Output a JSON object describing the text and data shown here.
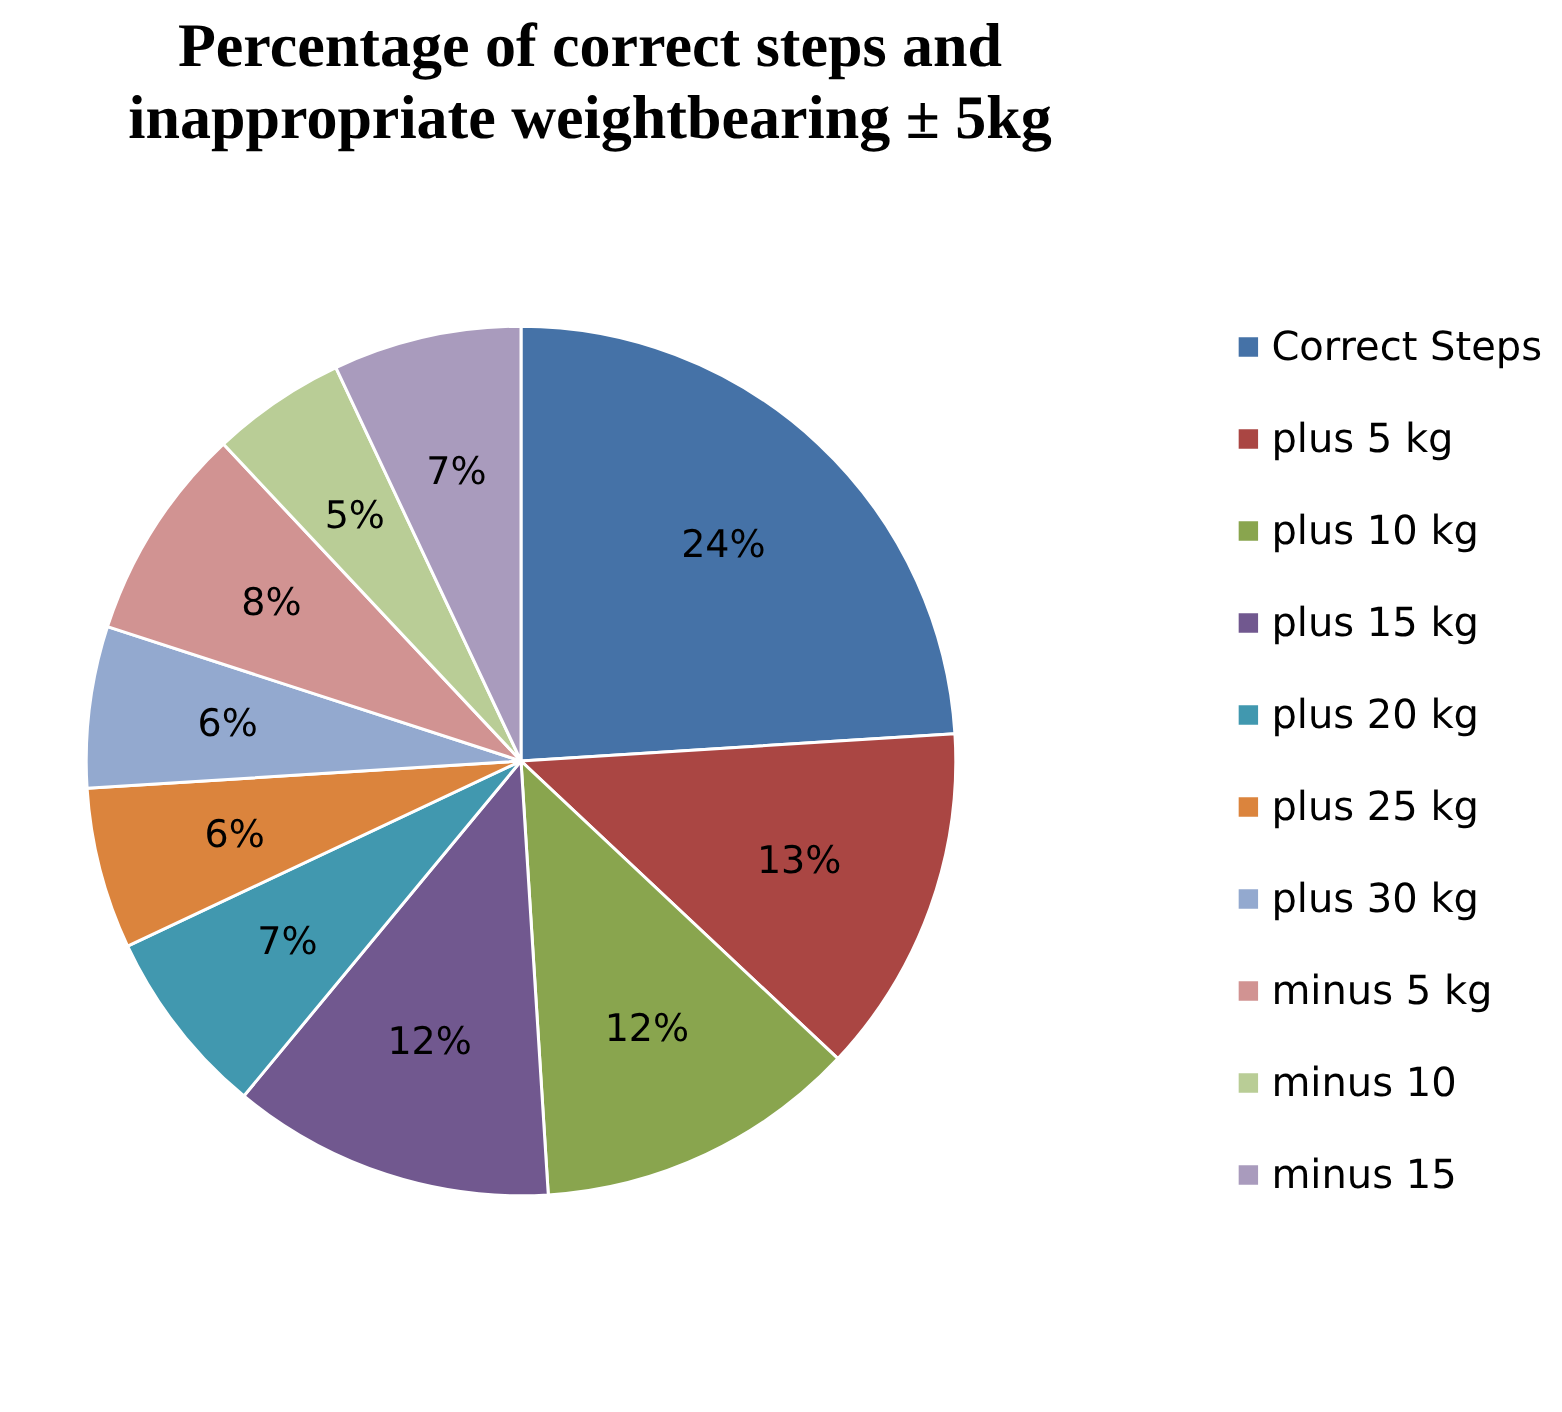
{
  "chart_data": {
    "type": "pie",
    "title": "Percentage of correct steps and inappropriate weightbearing ± 5kg",
    "categories": [
      "Correct Steps",
      "plus 5 kg",
      "plus 10 kg",
      "plus 15 kg",
      "plus 20 kg",
      "plus 25 kg",
      "plus 30 kg",
      "minus 5 kg",
      "minus 10",
      "minus 15"
    ],
    "values": [
      24,
      13,
      12,
      12,
      7,
      6,
      6,
      8,
      5,
      7
    ],
    "colors": [
      "#4572a7",
      "#aa4643",
      "#89a54e",
      "#71588f",
      "#4198af",
      "#db843d",
      "#93a9cf",
      "#d19392",
      "#b9cd96",
      "#a99bbd"
    ],
    "value_labels": [
      "24%",
      "13%",
      "12%",
      "12%",
      "7%",
      "6%",
      "6%",
      "8%",
      "5%",
      "7%"
    ],
    "legend": "right"
  }
}
